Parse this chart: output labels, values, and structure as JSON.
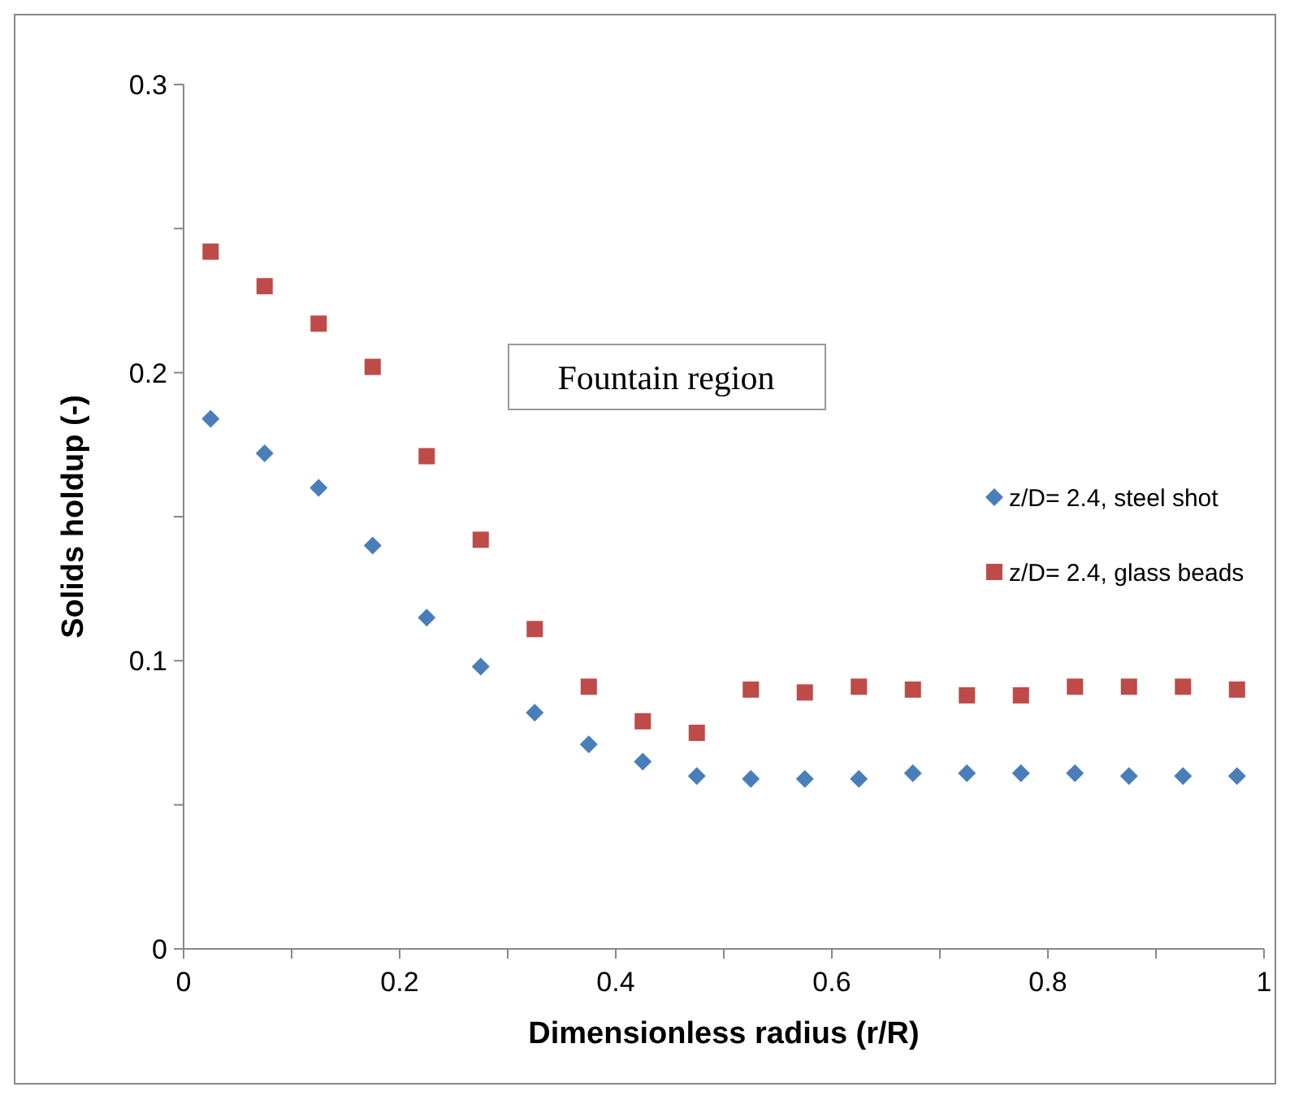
{
  "chart_data": {
    "type": "scatter",
    "xlabel": "Dimensionless radius (r/R)",
    "ylabel": "Solids holdup (-)",
    "x": [
      0.025,
      0.075,
      0.125,
      0.175,
      0.225,
      0.275,
      0.325,
      0.375,
      0.425,
      0.475,
      0.525,
      0.575,
      0.625,
      0.675,
      0.725,
      0.775,
      0.825,
      0.875,
      0.925,
      0.975
    ],
    "series": [
      {
        "name": "z/D= 2.4, steel shot",
        "color": "#4a7ebb",
        "marker": "diamond",
        "values": [
          0.184,
          0.172,
          0.16,
          0.14,
          0.115,
          0.098,
          0.082,
          0.071,
          0.065,
          0.06,
          0.059,
          0.059,
          0.059,
          0.061,
          0.061,
          0.061,
          0.061,
          0.06,
          0.06,
          0.06
        ]
      },
      {
        "name": "z/D= 2.4, glass beads",
        "color": "#be4b48",
        "marker": "square",
        "values": [
          0.242,
          0.23,
          0.217,
          0.202,
          0.171,
          0.142,
          0.111,
          0.091,
          0.079,
          0.075,
          0.09,
          0.089,
          0.091,
          0.09,
          0.088,
          0.088,
          0.091,
          0.091,
          0.091,
          0.09
        ]
      }
    ],
    "xlim": [
      0,
      1
    ],
    "xticks": [
      0,
      {
        "value": 0.1,
        "label": null
      },
      0.2,
      {
        "value": 0.3,
        "label": null
      },
      0.4,
      {
        "value": 0.5,
        "label": null
      },
      0.6,
      {
        "value": 0.7,
        "label": null
      },
      0.8,
      {
        "value": 0.9,
        "label": null
      },
      1
    ],
    "ylim": [
      0,
      0.3
    ],
    "yticks": [
      0,
      {
        "value": 0.05,
        "label": null
      },
      0.1,
      {
        "value": 0.15,
        "label": null
      },
      0.2,
      {
        "value": 0.25,
        "label": null
      },
      0.3
    ],
    "grid": false,
    "legend": "right",
    "annotations": [
      "Fountain region"
    ]
  }
}
